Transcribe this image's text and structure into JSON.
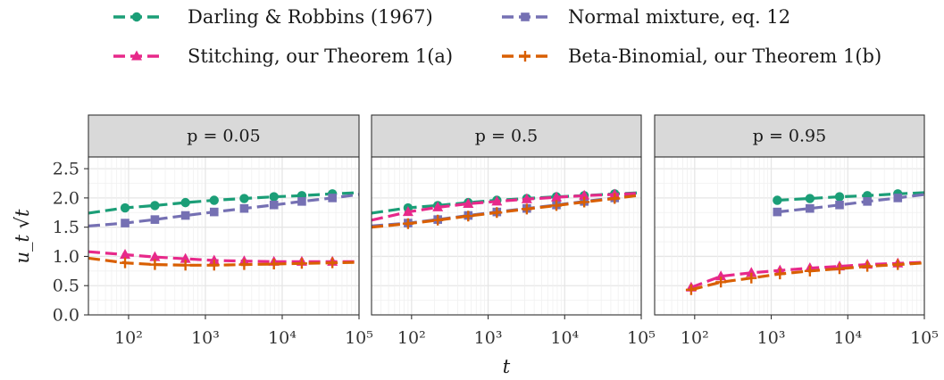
{
  "legend": [
    {
      "label": "Darling & Robbins (1967)",
      "color": "#1b9e77",
      "marker": "circle"
    },
    {
      "label": "Normal mixture, eq. 12",
      "color": "#7570b3",
      "marker": "square"
    },
    {
      "label": "Stitching, our Theorem 1(a)",
      "color": "#e7298a",
      "marker": "triangle"
    },
    {
      "label": "Beta-Binomial, our Theorem 1(b)",
      "color": "#d95f02",
      "marker": "plus"
    }
  ],
  "chart_data": {
    "type": "line",
    "facets": [
      "p = 0.05",
      "p = 0.5",
      "p = 0.95"
    ],
    "xlabel": "t",
    "ylabel": "u_t √t",
    "x_scale": "log10",
    "xlim": [
      30,
      100000
    ],
    "ylim": [
      0,
      2.7
    ],
    "x_ticks": [
      {
        "value": 100,
        "label": "10²"
      },
      {
        "value": 1000,
        "label": "10³"
      },
      {
        "value": 10000,
        "label": "10⁴"
      },
      {
        "value": 100000,
        "label": "10⁵"
      }
    ],
    "y_ticks": [
      0,
      0.5,
      1,
      1.5,
      2,
      2.5
    ],
    "y_tick_labels": [
      "0.0",
      "0.5",
      "1.0",
      "1.5",
      "2.0",
      "2.5"
    ],
    "grid": true,
    "legend_position": "top",
    "panels": [
      {
        "facet": "p = 0.05",
        "series": [
          {
            "name": "Darling & Robbins (1967)",
            "x": [
              30,
              90,
              220,
              550,
              1300,
              3200,
              7800,
              18000,
              45000,
              100000
            ],
            "y": [
              1.74,
              1.83,
              1.87,
              1.92,
              1.96,
              1.99,
              2.02,
              2.04,
              2.07,
              2.09
            ]
          },
          {
            "name": "Normal mixture, eq. 12",
            "x": [
              30,
              90,
              220,
              550,
              1300,
              3200,
              7800,
              18000,
              45000,
              100000
            ],
            "y": [
              1.52,
              1.57,
              1.63,
              1.7,
              1.76,
              1.82,
              1.88,
              1.94,
              2.0,
              2.06
            ]
          },
          {
            "name": "Stitching, our Theorem 1(a)",
            "x": [
              30,
              90,
              220,
              550,
              1300,
              3200,
              7800,
              18000,
              45000,
              100000
            ],
            "y": [
              1.08,
              1.03,
              0.99,
              0.96,
              0.93,
              0.92,
              0.91,
              0.91,
              0.91,
              0.91
            ]
          },
          {
            "name": "Beta-Binomial, our Theorem 1(b)",
            "x": [
              30,
              90,
              220,
              550,
              1300,
              3200,
              7800,
              18000,
              45000,
              100000
            ],
            "y": [
              0.97,
              0.89,
              0.86,
              0.85,
              0.85,
              0.86,
              0.87,
              0.88,
              0.89,
              0.9
            ]
          }
        ]
      },
      {
        "facet": "p = 0.5",
        "series": [
          {
            "name": "Darling & Robbins (1967)",
            "x": [
              30,
              90,
              220,
              550,
              1300,
              3200,
              7800,
              18000,
              45000,
              100000
            ],
            "y": [
              1.74,
              1.83,
              1.87,
              1.92,
              1.96,
              1.99,
              2.02,
              2.04,
              2.07,
              2.09
            ]
          },
          {
            "name": "Normal mixture, eq. 12",
            "x": [
              30,
              90,
              220,
              550,
              1300,
              3200,
              7800,
              18000,
              45000,
              100000
            ],
            "y": [
              1.52,
              1.57,
              1.63,
              1.7,
              1.76,
              1.82,
              1.88,
              1.94,
              2.0,
              2.06
            ]
          },
          {
            "name": "Stitching, our Theorem 1(a)",
            "x": [
              30,
              90,
              220,
              550,
              1300,
              3200,
              7800,
              18000,
              45000,
              100000
            ],
            "y": [
              1.62,
              1.76,
              1.84,
              1.9,
              1.94,
              1.98,
              2.01,
              2.04,
              2.06,
              2.08
            ]
          },
          {
            "name": "Beta-Binomial, our Theorem 1(b)",
            "x": [
              30,
              90,
              220,
              550,
              1300,
              3200,
              7800,
              18000,
              45000,
              100000
            ],
            "y": [
              1.5,
              1.56,
              1.62,
              1.69,
              1.75,
              1.81,
              1.87,
              1.93,
              1.99,
              2.05
            ]
          }
        ]
      },
      {
        "facet": "p = 0.95",
        "series": [
          {
            "name": "Darling & Robbins (1967)",
            "x": [
              1200,
              3200,
              7800,
              18000,
              45000,
              100000
            ],
            "y": [
              1.96,
              1.99,
              2.02,
              2.04,
              2.07,
              2.09
            ]
          },
          {
            "name": "Normal mixture, eq. 12",
            "x": [
              1200,
              3200,
              7800,
              18000,
              45000,
              100000
            ],
            "y": [
              1.76,
              1.82,
              1.88,
              1.94,
              2.0,
              2.06
            ]
          },
          {
            "name": "Stitching, our Theorem 1(a)",
            "x": [
              90,
              220,
              550,
              1300,
              3200,
              7800,
              18000,
              45000,
              100000
            ],
            "y": [
              0.47,
              0.66,
              0.72,
              0.76,
              0.8,
              0.83,
              0.86,
              0.88,
              0.9
            ]
          },
          {
            "name": "Beta-Binomial, our Theorem 1(b)",
            "x": [
              90,
              220,
              550,
              1300,
              3200,
              7800,
              18000,
              45000,
              100000
            ],
            "y": [
              0.43,
              0.56,
              0.63,
              0.7,
              0.75,
              0.79,
              0.83,
              0.86,
              0.89
            ]
          }
        ]
      }
    ]
  }
}
